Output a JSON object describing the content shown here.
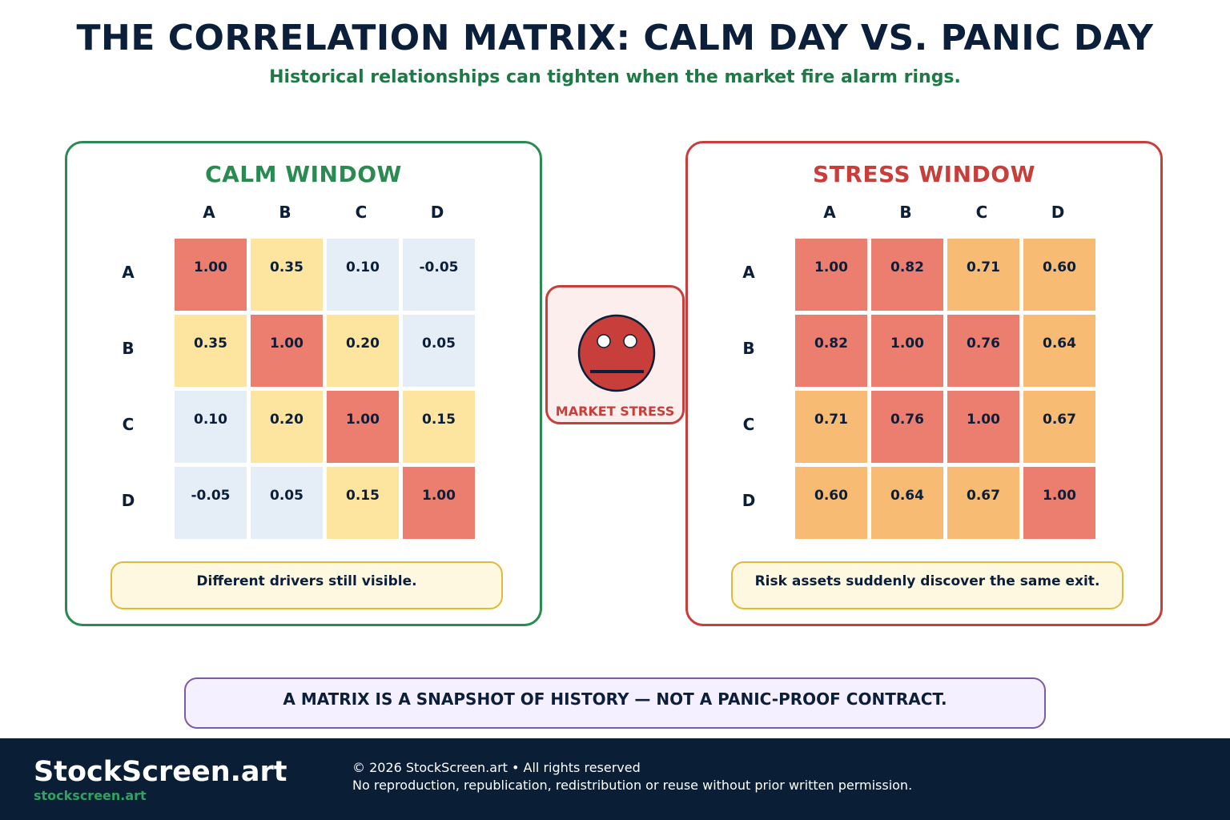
{
  "header": {
    "title": "THE CORRELATION MATRIX: CALM DAY VS. PANIC DAY",
    "subtitle": "Historical relationships can tighten when the market fire alarm rings."
  },
  "stress_indicator": {
    "icon": "worried-face-icon",
    "label": "MARKET STRESS"
  },
  "chart_data": [
    {
      "type": "heatmap",
      "title": "CALM WINDOW",
      "columns": [
        "A",
        "B",
        "C",
        "D"
      ],
      "rows": [
        "A",
        "B",
        "C",
        "D"
      ],
      "values": [
        [
          1.0,
          0.35,
          0.1,
          -0.05
        ],
        [
          0.35,
          1.0,
          0.2,
          0.05
        ],
        [
          0.1,
          0.2,
          1.0,
          0.15
        ],
        [
          -0.05,
          0.05,
          0.15,
          1.0
        ]
      ],
      "labels": [
        [
          "1.00",
          "0.35",
          "0.10",
          "-0.05"
        ],
        [
          "0.35",
          "1.00",
          "0.20",
          "0.05"
        ],
        [
          "0.10",
          "0.20",
          "1.00",
          "0.15"
        ],
        [
          "-0.05",
          "0.05",
          "0.15",
          "1.00"
        ]
      ],
      "note": "Different drivers still visible.",
      "accent_color": "#2a8a52"
    },
    {
      "type": "heatmap",
      "title": "STRESS WINDOW",
      "columns": [
        "A",
        "B",
        "C",
        "D"
      ],
      "rows": [
        "A",
        "B",
        "C",
        "D"
      ],
      "values": [
        [
          1.0,
          0.82,
          0.71,
          0.6
        ],
        [
          0.82,
          1.0,
          0.76,
          0.64
        ],
        [
          0.71,
          0.76,
          1.0,
          0.67
        ],
        [
          0.6,
          0.64,
          0.67,
          1.0
        ]
      ],
      "labels": [
        [
          "1.00",
          "0.82",
          "0.71",
          "0.60"
        ],
        [
          "0.82",
          "1.00",
          "0.76",
          "0.64"
        ],
        [
          "0.71",
          "0.76",
          "1.00",
          "0.67"
        ],
        [
          "0.60",
          "0.64",
          "0.67",
          "1.00"
        ]
      ],
      "note": "Risk assets suddenly discover the same exit.",
      "accent_color": "#c73e3a"
    }
  ],
  "color_scale": {
    "low": "#e5eef7",
    "mild": "#fde5a0",
    "elevated": "#f8bb73",
    "high": "#ec7e70"
  },
  "banner": {
    "text": "A MATRIX IS A SNAPSHOT OF HISTORY — NOT A PANIC-PROOF CONTRACT."
  },
  "footer": {
    "brand": "StockScreen.art",
    "url": "stockscreen.art",
    "copyright": "© 2026 StockScreen.art • All rights reserved",
    "notice": "No reproduction, republication, redistribution or reuse without prior written permission."
  }
}
